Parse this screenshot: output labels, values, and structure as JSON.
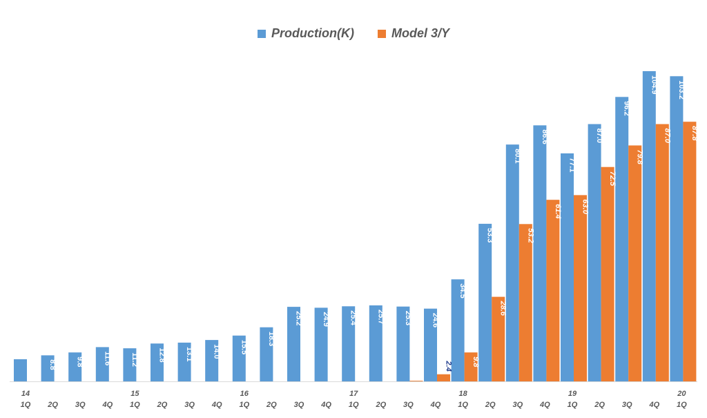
{
  "chart_data": {
    "type": "bar",
    "title": "",
    "xlabel": "",
    "ylabel": "",
    "ylim": [
      0,
      110
    ],
    "grid": false,
    "legend_position": "top-center",
    "categories": [
      "1Q",
      "2Q",
      "3Q",
      "4Q",
      "1Q",
      "2Q",
      "3Q",
      "4Q",
      "1Q",
      "2Q",
      "3Q",
      "4Q",
      "1Q",
      "2Q",
      "3Q",
      "4Q",
      "1Q",
      "2Q",
      "3Q",
      "4Q",
      "1Q",
      "2Q",
      "3Q",
      "4Q",
      "1Q"
    ],
    "year_labels": [
      "14",
      "",
      "",
      "",
      "15",
      "",
      "",
      "",
      "16",
      "",
      "",
      "",
      "17",
      "",
      "",
      "",
      "18",
      "",
      "",
      "",
      "19",
      "",
      "",
      "",
      "20"
    ],
    "series": [
      {
        "name": "Production(K)",
        "color": "#5B9BD5",
        "values": [
          7.5,
          8.8,
          9.8,
          11.6,
          11.2,
          12.8,
          13.1,
          14.0,
          15.5,
          18.3,
          25.2,
          24.9,
          25.4,
          25.7,
          25.3,
          24.6,
          34.5,
          53.3,
          80.1,
          86.6,
          77.1,
          87.0,
          96.2,
          104.9,
          103.2
        ],
        "labels": [
          "",
          "8.8",
          "9.8",
          "11.6",
          "11.2",
          "12.8",
          "13.1",
          "14.0",
          "15.5",
          "18.3",
          "25.2",
          "24.9",
          "25.4",
          "25.7",
          "25.3",
          "24.6",
          "34.5",
          "53.3",
          "80.1",
          "86.6",
          "77.1",
          "87.0",
          "96.2",
          "104.9",
          "103.2"
        ]
      },
      {
        "name": "Model 3/Y",
        "color": "#ED7D31",
        "values": [
          null,
          null,
          null,
          null,
          null,
          null,
          null,
          null,
          null,
          null,
          null,
          null,
          null,
          null,
          0.2,
          2.4,
          9.8,
          28.6,
          53.2,
          61.4,
          63.0,
          72.5,
          79.8,
          87.0,
          87.8
        ],
        "labels": [
          "",
          "",
          "",
          "",
          "",
          "",
          "",
          "",
          "",
          "",
          "",
          "",
          "",
          "",
          "",
          "2.4",
          "9.8",
          "28.6",
          "53.2",
          "61.4",
          "63.0",
          "72.5",
          "79.8",
          "87.0",
          "87.8"
        ]
      }
    ]
  }
}
